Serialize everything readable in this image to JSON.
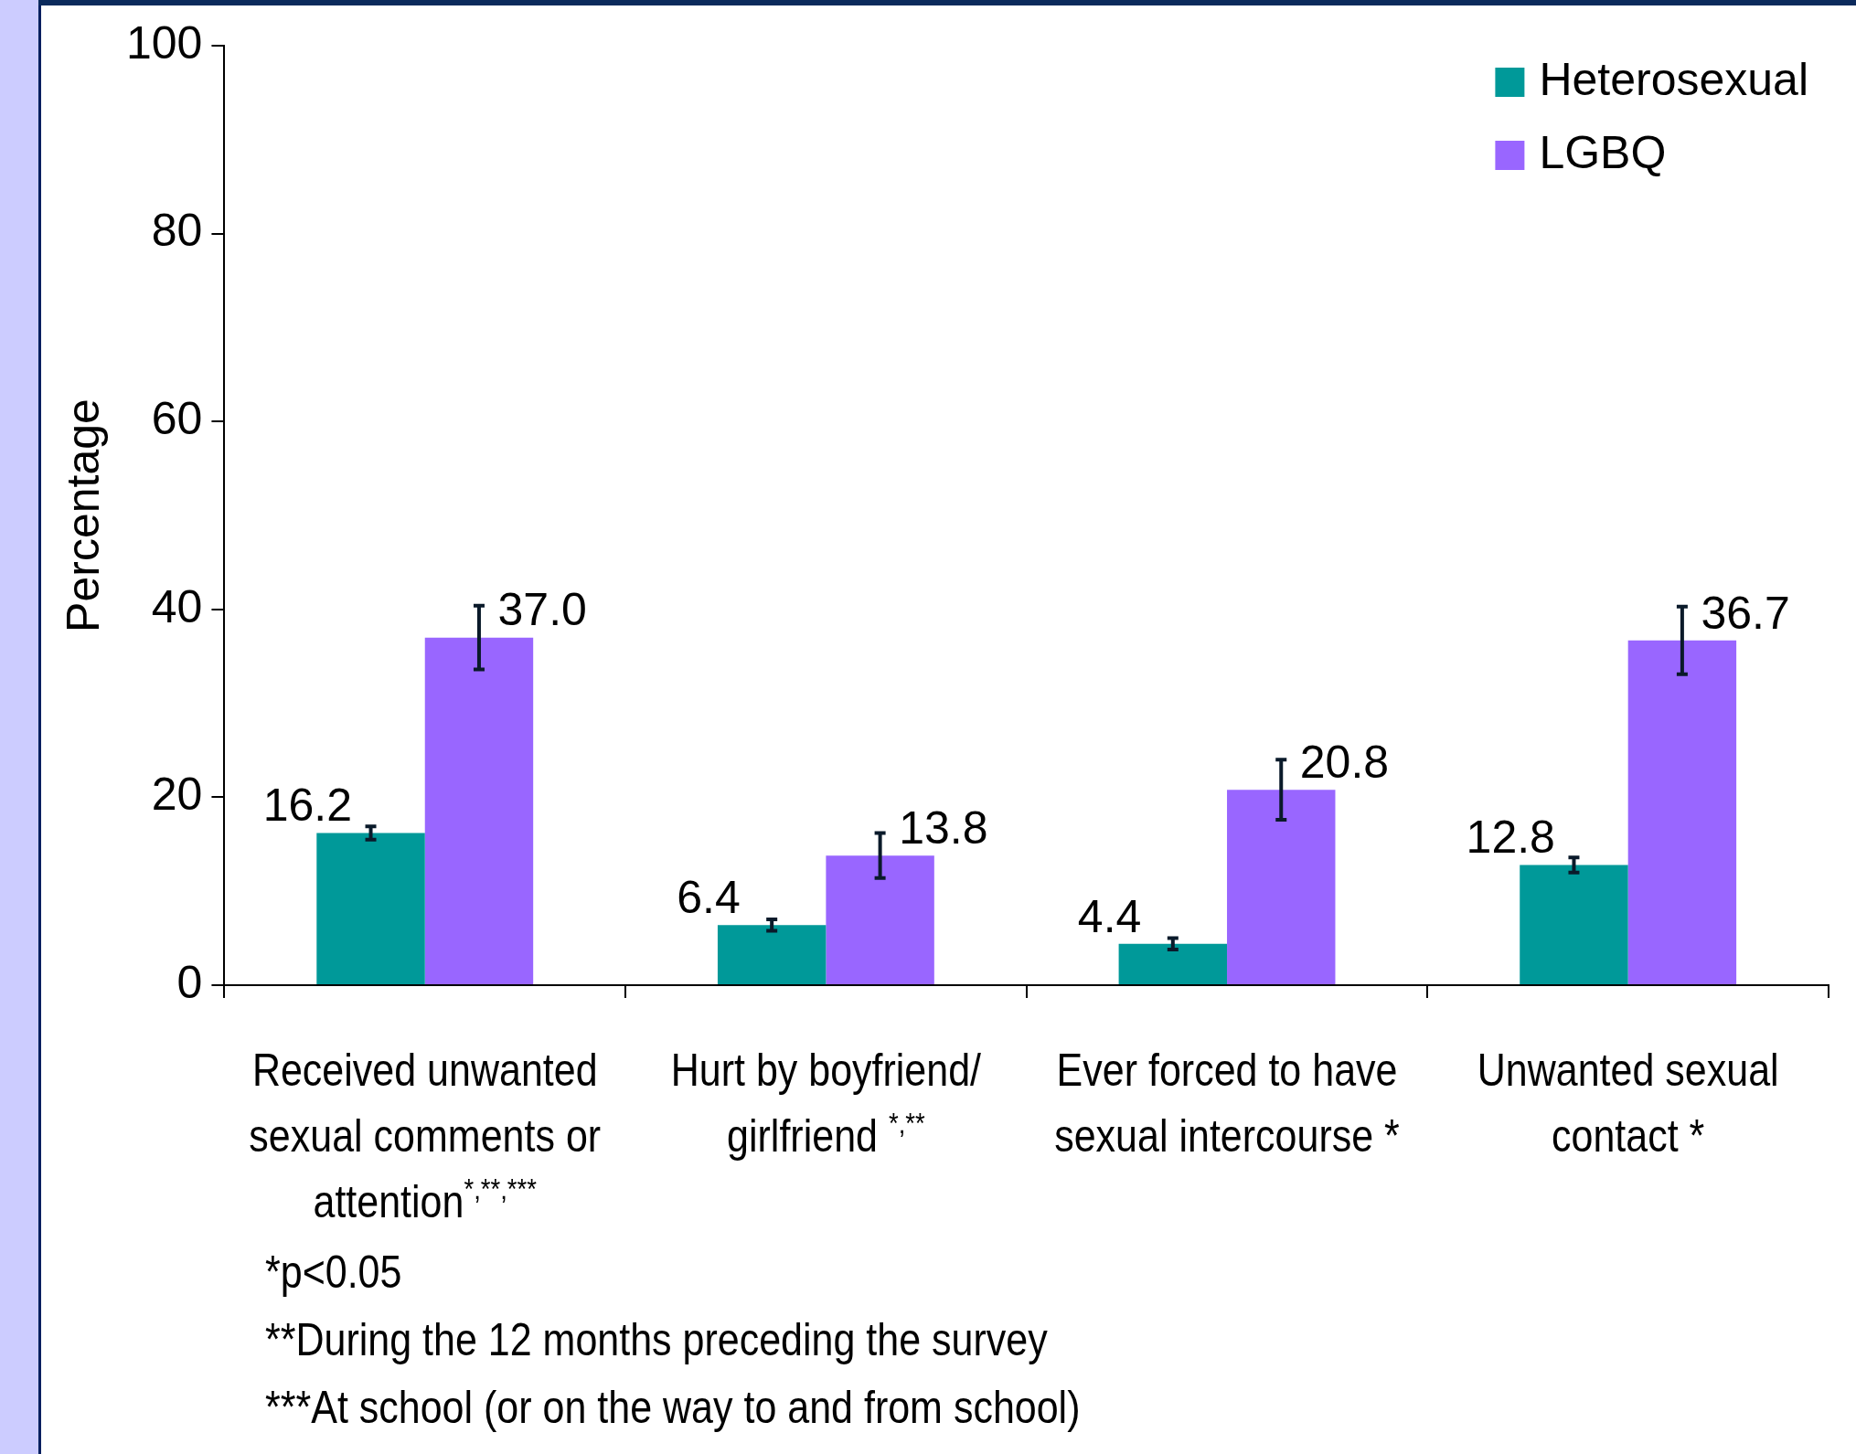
{
  "chart_data": {
    "type": "bar",
    "ylabel": "Percentage",
    "categories": [
      "Received unwanted sexual comments or attention$^{*,**,***}$",
      "Hurt by boyfriend/ girlfriend $^{*,**}$",
      "Ever forced to have sexual intercourse *",
      "Unwanted sexual contact *"
    ],
    "series": [
      {
        "name": "Heterosexual",
        "color": "#009999",
        "values": [
          16.2,
          6.4,
          4.4,
          12.8
        ],
        "errors": [
          0.7,
          0.6,
          0.6,
          0.8
        ],
        "value_labels": [
          "16.2",
          "6.4",
          "4.4",
          "12.8"
        ]
      },
      {
        "name": "LGBQ",
        "color": "#9966ff",
        "values": [
          37.0,
          13.8,
          20.8,
          36.7
        ],
        "errors": [
          3.4,
          2.4,
          3.2,
          3.6
        ],
        "value_labels": [
          "37.0",
          "13.8",
          "20.8",
          "36.7"
        ]
      }
    ],
    "ylim": [
      0,
      100
    ],
    "yticks": [
      0,
      20,
      40,
      60,
      80,
      100
    ],
    "grid": false,
    "legend": "top right",
    "annotations": [
      "*p<0.05",
      "**During the 12 months preceding the survey",
      "***At school (or on the way to and from school)"
    ]
  }
}
